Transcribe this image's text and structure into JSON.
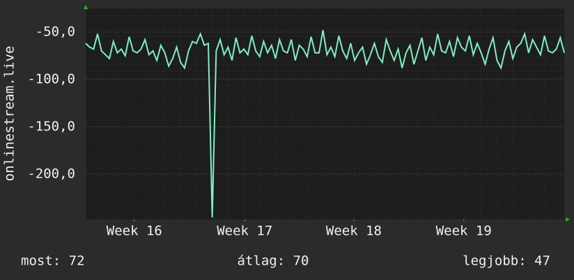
{
  "chart_data": {
    "type": "line",
    "y_label": "onlinestream.live",
    "series": [
      {
        "name": "onlinestream.live",
        "color": "#7ff0c0",
        "values": [
          -62,
          -66,
          -68,
          -52,
          -70,
          -74,
          -78,
          -60,
          -72,
          -68,
          -75,
          -55,
          -70,
          -72,
          -68,
          -58,
          -74,
          -70,
          -80,
          -64,
          -72,
          -86,
          -78,
          -66,
          -82,
          -88,
          -70,
          -60,
          -62,
          -52,
          -64,
          -62,
          -246,
          -70,
          -58,
          -74,
          -66,
          -80,
          -56,
          -72,
          -68,
          -74,
          -54,
          -70,
          -76,
          -60,
          -72,
          -64,
          -78,
          -58,
          -70,
          -72,
          -58,
          -80,
          -64,
          -68,
          -76,
          -55,
          -72,
          -72,
          -48,
          -74,
          -66,
          -76,
          -54,
          -70,
          -78,
          -62,
          -80,
          -72,
          -66,
          -84,
          -74,
          -62,
          -76,
          -82,
          -58,
          -70,
          -80,
          -68,
          -88,
          -72,
          -64,
          -84,
          -70,
          -56,
          -80,
          -66,
          -74,
          -52,
          -70,
          -72,
          -60,
          -76,
          -56,
          -66,
          -70,
          -54,
          -74,
          -62,
          -72,
          -84,
          -68,
          -56,
          -80,
          -88,
          -70,
          -60,
          -78,
          -66,
          -62,
          -52,
          -72,
          -58,
          -66,
          -74,
          -54,
          -70,
          -72,
          -68,
          -56,
          -72
        ]
      }
    ],
    "xlim": [
      0,
      121
    ],
    "xticks": [
      {
        "value": 12.3,
        "label": "Week 16"
      },
      {
        "value": 40.2,
        "label": "Week 17"
      },
      {
        "value": 67.8,
        "label": "Week 18"
      },
      {
        "value": 95.6,
        "label": "Week 19"
      }
    ],
    "ylim": [
      -248,
      -25
    ],
    "yticks": [
      {
        "value": -50,
        "label": "-50,0"
      },
      {
        "value": -100,
        "label": "-100,0"
      },
      {
        "value": -150,
        "label": "-150,0"
      },
      {
        "value": -200,
        "label": "-200,0"
      }
    ],
    "grid": true,
    "stats": [
      "most: 72",
      "átlag: 70",
      "legjobb: 47"
    ]
  }
}
